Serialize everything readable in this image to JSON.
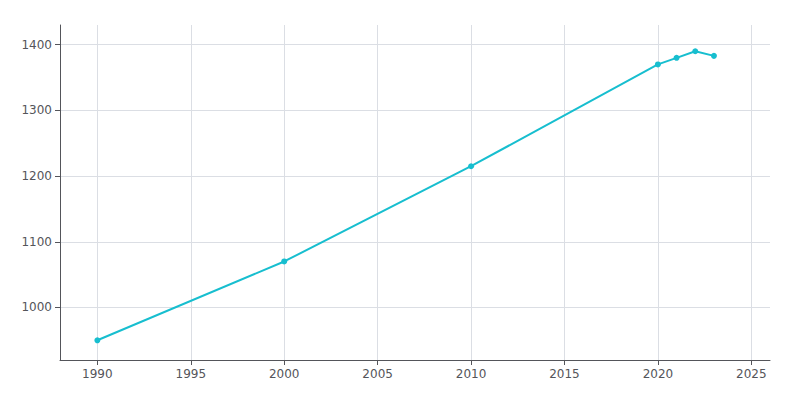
{
  "chart_data": {
    "type": "line",
    "x": [
      1990,
      2000,
      2010,
      2020,
      2021,
      2022,
      2023
    ],
    "values": [
      950,
      1070,
      1215,
      1370,
      1380,
      1390,
      1383
    ],
    "color": "#17becf",
    "marker": "circle",
    "xlim": [
      1988,
      2026
    ],
    "ylim": [
      920,
      1430
    ],
    "xticks": [
      1990,
      1995,
      2000,
      2005,
      2010,
      2015,
      2020,
      2025
    ],
    "yticks": [
      1000,
      1100,
      1200,
      1300,
      1400
    ],
    "grid": true
  }
}
